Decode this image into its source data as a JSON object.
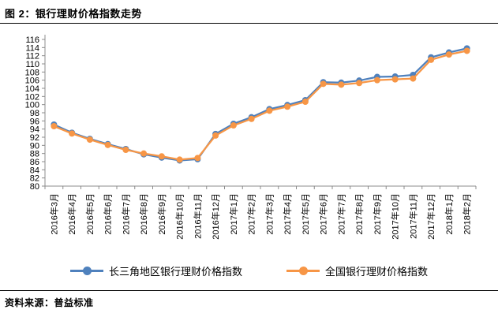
{
  "page": {
    "title": "图 2：银行理财价格指数走势",
    "source": "资料来源：普益标准"
  },
  "chart_data": {
    "type": "line",
    "title": "银行理财价格指数走势",
    "categories": [
      "2016年3月",
      "2016年4月",
      "2016年5月",
      "2016年6月",
      "2016年7月",
      "2016年8月",
      "2016年9月",
      "2016年10月",
      "2016年11月",
      "2016年12月",
      "2017年1月",
      "2017年2月",
      "2017年3月",
      "2017年4月",
      "2017年5月",
      "2017年6月",
      "2017年7月",
      "2017年8月",
      "2017年9月",
      "2017年10月",
      "2017年11月",
      "2017年12月",
      "2018年1月",
      "2018年2月"
    ],
    "series": [
      {
        "name": "长三角地区银行理财价格指数",
        "color": "#4F81BD",
        "values": [
          95.1,
          93.1,
          91.6,
          90.3,
          89.1,
          87.8,
          87.0,
          86.3,
          86.6,
          92.8,
          95.3,
          96.9,
          98.9,
          99.9,
          101.1,
          105.5,
          105.4,
          105.9,
          106.8,
          106.9,
          107.3,
          111.6,
          112.8,
          113.8
        ]
      },
      {
        "name": "全国银行理财价格指数",
        "color": "#F79646",
        "values": [
          94.7,
          92.9,
          91.4,
          90.1,
          88.9,
          88.0,
          87.3,
          86.5,
          86.9,
          92.4,
          94.9,
          96.5,
          98.5,
          99.5,
          100.7,
          105.1,
          104.9,
          105.3,
          106.0,
          106.2,
          106.4,
          111.0,
          112.3,
          113.2
        ]
      }
    ],
    "ylim": [
      80,
      116
    ],
    "ytick_step": 2,
    "grid": false,
    "legend_position": "bottom",
    "axis_color": "#8C8C8C",
    "label_color": "#000000"
  }
}
